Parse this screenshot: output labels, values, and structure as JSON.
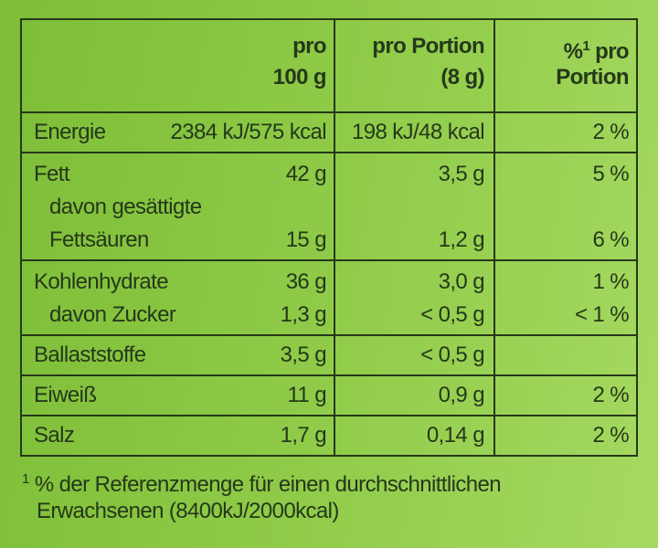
{
  "header": {
    "per_100g": [
      "pro",
      "100 g"
    ],
    "per_portion": [
      "pro Portion",
      "(8 g)"
    ],
    "percent": {
      "pre": "%",
      "sup": "1",
      "post": "pro",
      "line2": "Portion"
    }
  },
  "groups": [
    {
      "lines": [
        {
          "label": "Energie",
          "per_100g": "2384 kJ/575 kcal",
          "per_portion": "198 kJ/48 kcal",
          "percent": "2 %"
        }
      ]
    },
    {
      "lines": [
        {
          "label": "Fett",
          "per_100g": "42 g",
          "per_portion": "3,5 g",
          "percent": "5 %"
        },
        {
          "label": "davon gesättigte",
          "indent": true
        },
        {
          "label": "Fettsäuren",
          "indent": true,
          "per_100g": "15 g",
          "per_portion": "1,2 g",
          "percent": "6 %"
        }
      ]
    },
    {
      "lines": [
        {
          "label": "Kohlenhydrate",
          "per_100g": "36 g",
          "per_portion": "3,0 g",
          "percent": "1 %"
        },
        {
          "label": "davon Zucker",
          "indent": true,
          "per_100g": "1,3 g",
          "per_portion": "< 0,5 g",
          "percent": "< 1 %"
        }
      ]
    },
    {
      "lines": [
        {
          "label": "Ballaststoffe",
          "per_100g": "3,5 g",
          "per_portion": "< 0,5 g"
        }
      ]
    },
    {
      "lines": [
        {
          "label": "Eiweiß",
          "per_100g": "11 g",
          "per_portion": "0,9 g",
          "percent": "2 %"
        }
      ]
    },
    {
      "lines": [
        {
          "label": "Salz",
          "per_100g": "1,7 g",
          "per_portion": "0,14 g",
          "percent": "2 %"
        }
      ]
    }
  ],
  "footnote": {
    "mark": "1",
    "lines": [
      "% der Referenzmenge für einen durchschnittlichen",
      "Erwachsenen (8400kJ/2000kcal)"
    ]
  }
}
